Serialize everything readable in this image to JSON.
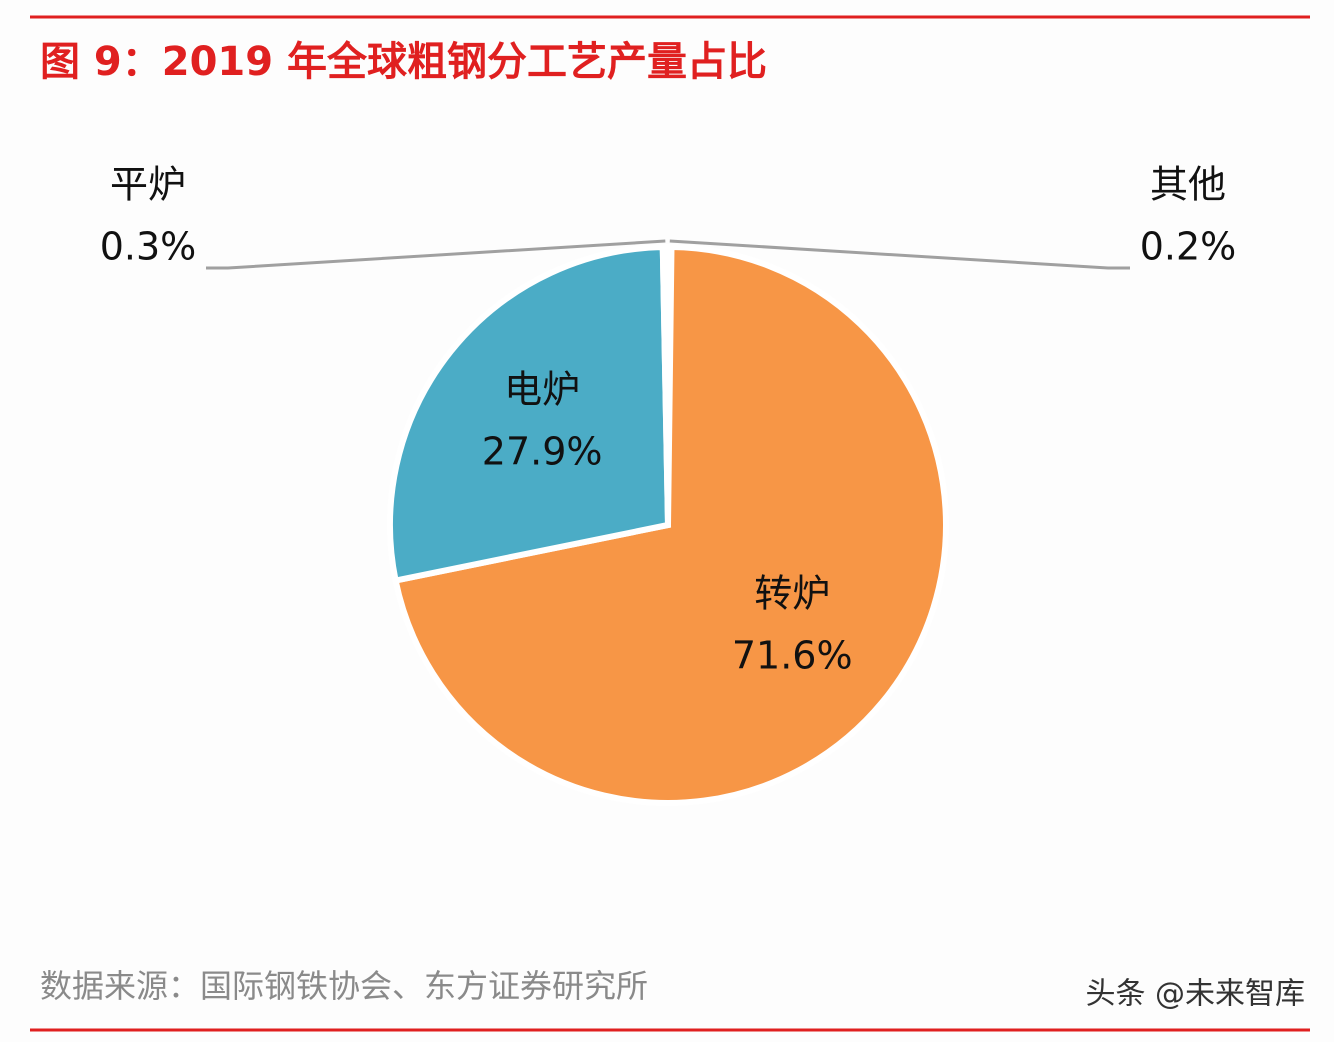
{
  "chart_data": {
    "type": "pie",
    "title": "图 9：2019 年全球粗钢分工艺产量占比",
    "categories": [
      "其他",
      "转炉",
      "电炉",
      "平炉"
    ],
    "values": [
      0.2,
      71.6,
      27.9,
      0.3
    ],
    "value_labels": [
      "0.2%",
      "71.6%",
      "27.9%",
      "0.3%"
    ],
    "colors": [
      "#7f7f7f",
      "#f79646",
      "#4bacc6",
      "#a5a5a5"
    ],
    "source": "数据来源：国际钢铁协会、东方证券研究所",
    "watermark": "头条 @未来智库"
  }
}
